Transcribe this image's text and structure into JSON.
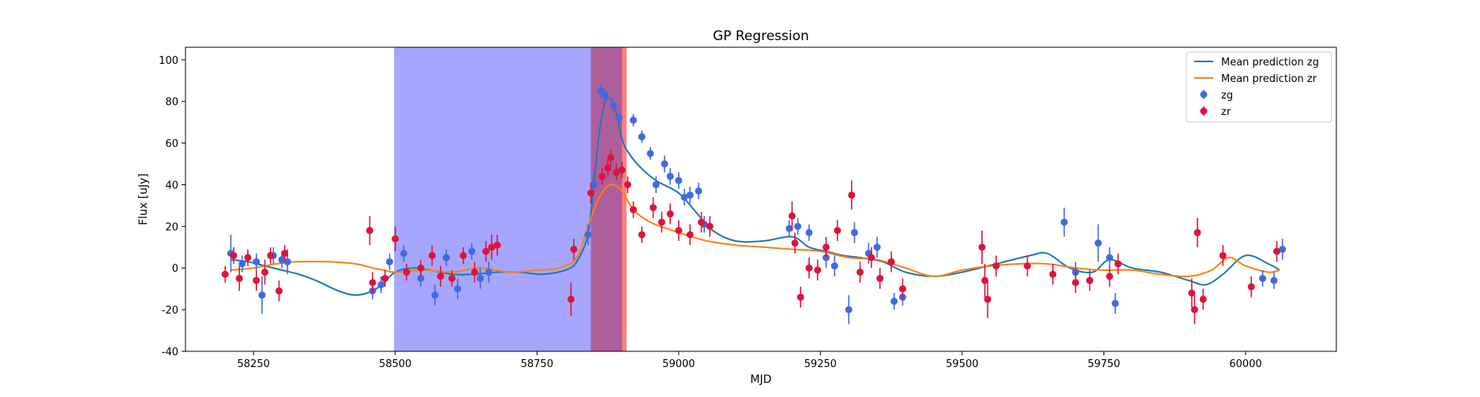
{
  "chart_data": {
    "type": "line",
    "title": "GP Regression",
    "xlabel": "MJD",
    "ylabel": "Flux [uJy]",
    "xlim": [
      58130,
      60160
    ],
    "ylim": [
      -40,
      106
    ],
    "xticks": [
      58250,
      58500,
      58750,
      59000,
      59250,
      59500,
      59750,
      60000
    ],
    "yticks": [
      -40,
      -20,
      0,
      20,
      40,
      60,
      80,
      100
    ],
    "grid": false,
    "legend_position": "top-right",
    "shaded_regions": [
      {
        "x0": 58498,
        "x1": 58845,
        "color": "#a6a6ff"
      },
      {
        "x0": 58845,
        "x1": 58908,
        "color": "#fa8080"
      },
      {
        "x0": 58845,
        "x1": 58900,
        "color": "#a058a0"
      }
    ],
    "series": [
      {
        "name": "Mean prediction zg",
        "kind": "line",
        "color": "#1f77b4",
        "x": [
          58210,
          58240,
          58270,
          58300,
          58330,
          58360,
          58400,
          58430,
          58460,
          58480,
          58500,
          58530,
          58560,
          58600,
          58640,
          58680,
          58720,
          58760,
          58800,
          58820,
          58840,
          58850,
          58860,
          58870,
          58880,
          58890,
          58900,
          58910,
          58930,
          58960,
          59000,
          59030,
          59060,
          59100,
          59150,
          59200,
          59230,
          59260,
          59290,
          59320,
          59360,
          59400,
          59450,
          59500,
          59560,
          59620,
          59650,
          59690,
          59730,
          59760,
          59800,
          59850,
          59900,
          59930,
          59960,
          60000,
          60040,
          60060
        ],
        "y": [
          4,
          3,
          1,
          -1,
          -3,
          -6,
          -11,
          -13,
          -11,
          -7,
          -2,
          0,
          -1,
          -3,
          -3,
          -2,
          -2,
          -3,
          -1,
          3,
          16,
          40,
          65,
          80,
          81,
          74,
          62,
          56,
          49,
          42,
          36,
          27,
          18,
          13,
          13,
          15,
          10,
          8,
          6,
          5,
          3,
          -2,
          -4,
          -2,
          2,
          6,
          7,
          0,
          -2,
          4,
          0,
          -2,
          -6,
          -8,
          -3,
          6,
          2,
          -1
        ]
      },
      {
        "name": "Mean prediction zr",
        "kind": "line",
        "color": "#ff7f0e",
        "x": [
          58210,
          58250,
          58290,
          58330,
          58380,
          58430,
          58460,
          58480,
          58500,
          58550,
          58600,
          58650,
          58700,
          58750,
          58790,
          58820,
          58840,
          58860,
          58880,
          58900,
          58920,
          58950,
          59000,
          59050,
          59100,
          59150,
          59200,
          59250,
          59300,
          59350,
          59400,
          59450,
          59500,
          59550,
          59600,
          59650,
          59700,
          59750,
          59800,
          59850,
          59900,
          59940,
          59970,
          60000,
          60040,
          60060
        ],
        "y": [
          -1,
          0,
          2,
          3,
          3,
          2,
          0,
          -1,
          -2,
          -1,
          -2,
          0,
          -2,
          -1,
          0,
          5,
          20,
          34,
          40,
          37,
          28,
          22,
          17,
          13,
          11,
          10,
          9,
          8,
          5,
          4,
          0,
          -4,
          -1,
          1,
          2,
          2,
          0,
          -1,
          -1,
          -3,
          -4,
          -1,
          5,
          1,
          -2,
          -1
        ]
      },
      {
        "name": "zg",
        "kind": "errorbar",
        "color": "#4169e1",
        "x": [
          58210,
          58230,
          58255,
          58265,
          58285,
          58300,
          58310,
          58460,
          58475,
          58490,
          58515,
          58545,
          58570,
          58590,
          58610,
          58635,
          58650,
          58665,
          58840,
          58850,
          58862,
          58870,
          58885,
          58895,
          58920,
          58935,
          58950,
          58960,
          58975,
          58985,
          59000,
          59010,
          59020,
          59035,
          59045,
          59195,
          59210,
          59230,
          59260,
          59275,
          59300,
          59310,
          59335,
          59350,
          59380,
          59395,
          59680,
          59700,
          59740,
          59760,
          59770,
          60030,
          60050,
          60065
        ],
        "y": [
          7,
          2,
          3,
          -13,
          6,
          4,
          3,
          -11,
          -8,
          3,
          7,
          -5,
          -13,
          5,
          -10,
          8,
          -5,
          -2,
          16,
          40,
          85,
          83,
          78,
          72,
          71,
          63,
          55,
          40,
          50,
          44,
          42,
          34,
          35,
          37,
          21,
          19,
          20,
          17,
          5,
          1,
          -20,
          17,
          7,
          10,
          -16,
          -14,
          22,
          -2,
          12,
          5,
          -17,
          -5,
          -6,
          9
        ],
        "yerr": [
          9,
          4,
          4,
          9,
          4,
          4,
          6,
          4,
          4,
          4,
          4,
          4,
          5,
          4,
          5,
          4,
          5,
          5,
          5,
          5,
          3,
          3,
          3,
          3,
          3,
          3,
          3,
          4,
          4,
          4,
          4,
          4,
          4,
          4,
          4,
          4,
          4,
          4,
          5,
          5,
          7,
          5,
          5,
          5,
          4,
          4,
          7,
          5,
          9,
          5,
          5,
          4,
          4,
          5
        ]
      },
      {
        "name": "zr",
        "kind": "errorbar",
        "color": "#dc143c",
        "x": [
          58200,
          58215,
          58225,
          58240,
          58255,
          58270,
          58280,
          58295,
          58305,
          58455,
          58460,
          58482,
          58500,
          58520,
          58545,
          58565,
          58580,
          58600,
          58620,
          58640,
          58660,
          58670,
          58680,
          58810,
          58815,
          58845,
          58865,
          58875,
          58880,
          58890,
          58900,
          58910,
          58920,
          58935,
          58955,
          58970,
          58985,
          59000,
          59020,
          59040,
          59055,
          59200,
          59205,
          59215,
          59230,
          59245,
          59260,
          59280,
          59305,
          59320,
          59340,
          59355,
          59375,
          59395,
          59535,
          59540,
          59545,
          59560,
          59615,
          59660,
          59700,
          59725,
          59760,
          59775,
          59905,
          59910,
          59915,
          59925,
          59960,
          60010,
          60055
        ],
        "y": [
          -3,
          6,
          -5,
          5,
          -6,
          -2,
          6,
          -11,
          7,
          18,
          -7,
          -5,
          14,
          -2,
          0,
          6,
          -4,
          -5,
          6,
          -2,
          8,
          10,
          11,
          -15,
          9,
          36,
          44,
          48,
          53,
          46,
          47,
          40,
          28,
          16,
          29,
          22,
          26,
          18,
          16,
          22,
          20,
          25,
          12,
          -14,
          0,
          -1,
          10,
          18,
          35,
          -2,
          5,
          -5,
          3,
          -10,
          10,
          -6,
          -15,
          1,
          1,
          -3,
          -7,
          -6,
          -4,
          2,
          -12,
          -20,
          17,
          -15,
          6,
          -9,
          8
        ],
        "yerr": [
          4,
          4,
          6,
          4,
          5,
          6,
          4,
          5,
          4,
          7,
          5,
          4,
          6,
          4,
          4,
          5,
          5,
          4,
          4,
          5,
          5,
          6,
          5,
          8,
          5,
          5,
          4,
          4,
          4,
          4,
          4,
          4,
          4,
          4,
          5,
          5,
          5,
          5,
          5,
          5,
          5,
          7,
          5,
          5,
          5,
          5,
          5,
          5,
          7,
          5,
          5,
          5,
          5,
          5,
          8,
          8,
          9,
          5,
          5,
          5,
          5,
          5,
          5,
          5,
          7,
          7,
          7,
          5,
          5,
          5,
          5
        ]
      }
    ]
  }
}
